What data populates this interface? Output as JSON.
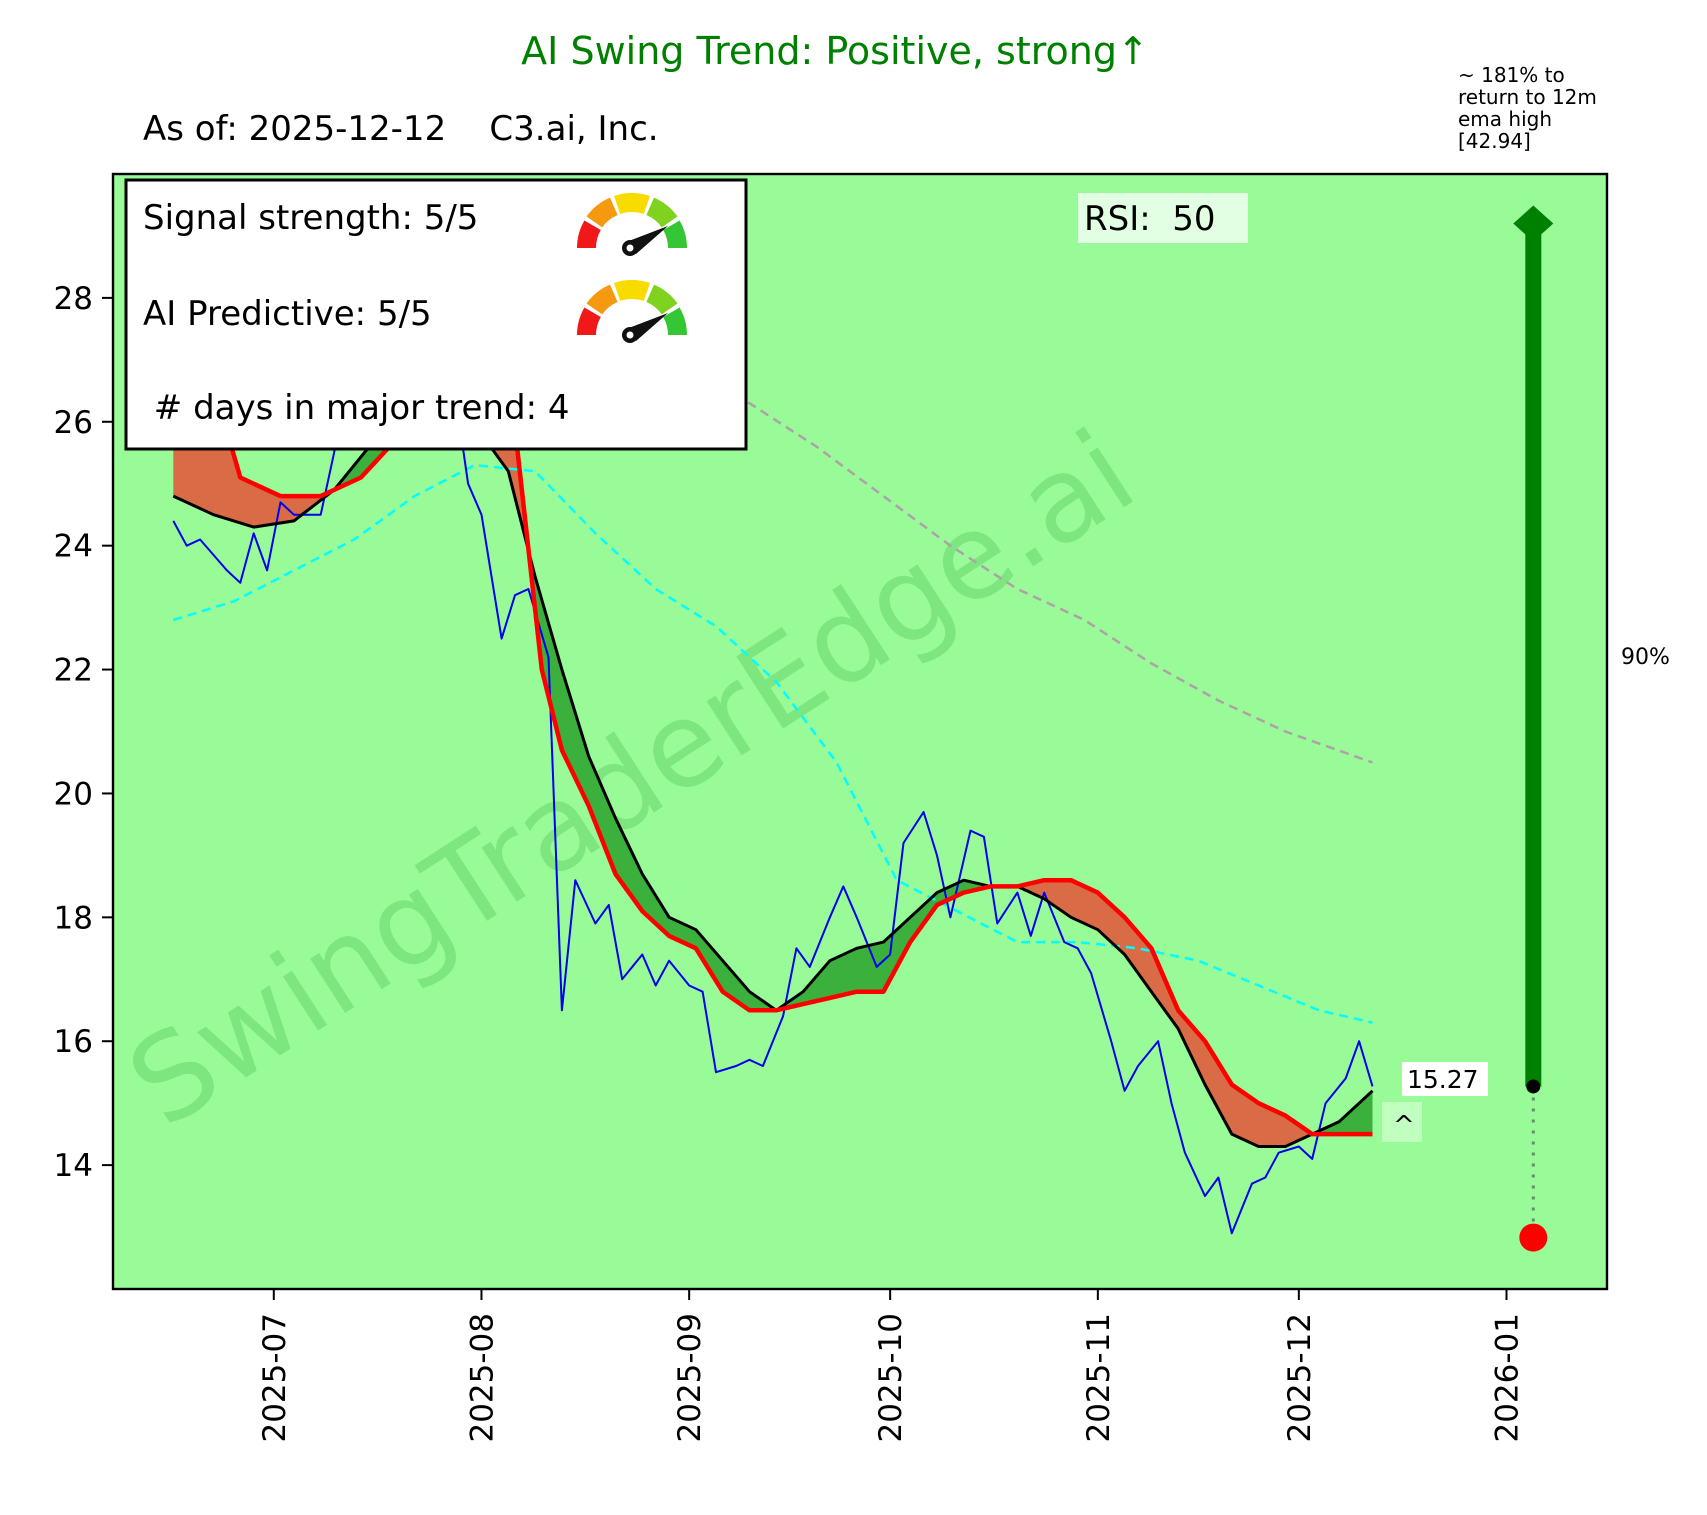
{
  "header": {
    "title": "AI  Swing Trend: Positive, strong↑",
    "title_color": "#008000",
    "subtitle": "As of: 2025-12-12    C3.ai, Inc."
  },
  "info_box": {
    "signal_strength_label": "Signal strength: 5/5",
    "signal_strength_value": 5,
    "ai_predictive_label": "AI Predictive: 5/5",
    "ai_predictive_value": 5,
    "days_in_trend_label": " # days in major trend: 4",
    "gauge_icon": "speedometer-gauge-icon"
  },
  "rsi_label": "RSI:  50",
  "watermark": "SwingTraderEdge.ai",
  "annotations": {
    "target_note": "~ 181% to\nreturn to 12m\nema high\n[42.94]",
    "target_percent": "90%",
    "last_price_label": "15.27",
    "caret_label": "^",
    "target_marker_value": 29.2,
    "current_marker_value": 15.27,
    "low_marker_value": 12.83,
    "target_progress_percent": 90
  },
  "colors": {
    "plot_bg": "#98fb98",
    "price": "#0000ee",
    "fast_ema": "#000000",
    "slow_ema": "#ff0000",
    "bull_fill": "#3cb03c",
    "bear_fill": "#d96b46",
    "ema_mid": "#00ffff",
    "ema_long": "#b0a0a8",
    "target": "#008000",
    "low_dot": "#ff0000"
  },
  "chart_data": {
    "type": "line",
    "title": "AI  Swing Trend: Positive, strong↑",
    "xlabel": "",
    "ylabel": "",
    "x_ticks": [
      "2025-07",
      "2025-08",
      "2025-09",
      "2025-10",
      "2025-11",
      "2025-12",
      "2026-01"
    ],
    "y_ticks": [
      "14",
      "16",
      "18",
      "20",
      "22",
      "24",
      "26",
      "28"
    ],
    "xlim": [
      "2025-06-07",
      "2026-01-16"
    ],
    "ylim": [
      12.0,
      30.0
    ],
    "grid": false,
    "series": [
      {
        "name": "price",
        "x": [
          "2025-06-16",
          "2025-06-18",
          "2025-06-20",
          "2025-06-24",
          "2025-06-26",
          "2025-06-28",
          "2025-06-30",
          "2025-07-02",
          "2025-07-04",
          "2025-07-08",
          "2025-07-10",
          "2025-07-12",
          "2025-07-14",
          "2025-07-20",
          "2025-07-25",
          "2025-07-28",
          "2025-07-30",
          "2025-08-01",
          "2025-08-04",
          "2025-08-06",
          "2025-08-08",
          "2025-08-11",
          "2025-08-13",
          "2025-08-15",
          "2025-08-18",
          "2025-08-20",
          "2025-08-22",
          "2025-08-25",
          "2025-08-27",
          "2025-08-29",
          "2025-09-01",
          "2025-09-03",
          "2025-09-05",
          "2025-09-08",
          "2025-09-10",
          "2025-09-12",
          "2025-09-15",
          "2025-09-17",
          "2025-09-19",
          "2025-09-22",
          "2025-09-24",
          "2025-09-26",
          "2025-09-29",
          "2025-10-01",
          "2025-10-03",
          "2025-10-06",
          "2025-10-08",
          "2025-10-10",
          "2025-10-13",
          "2025-10-15",
          "2025-10-17",
          "2025-10-20",
          "2025-10-22",
          "2025-10-24",
          "2025-10-27",
          "2025-10-29",
          "2025-10-31",
          "2025-11-03",
          "2025-11-05",
          "2025-11-07",
          "2025-11-10",
          "2025-11-12",
          "2025-11-14",
          "2025-11-17",
          "2025-11-19",
          "2025-11-21",
          "2025-11-24",
          "2025-11-26",
          "2025-11-28",
          "2025-12-01",
          "2025-12-03",
          "2025-12-05",
          "2025-12-08",
          "2025-12-10",
          "2025-12-12"
        ],
        "values": [
          24.4,
          24.0,
          24.1,
          23.6,
          23.4,
          24.2,
          23.6,
          24.7,
          24.5,
          24.5,
          25.5,
          27.0,
          27.2,
          27.5,
          27.0,
          26.5,
          25.0,
          24.5,
          22.5,
          23.2,
          23.3,
          22.2,
          16.5,
          18.6,
          17.9,
          18.2,
          17.0,
          17.4,
          16.9,
          17.3,
          16.9,
          16.8,
          15.5,
          15.6,
          15.7,
          15.6,
          16.4,
          17.5,
          17.2,
          18.0,
          18.5,
          18.0,
          17.2,
          17.4,
          19.2,
          19.7,
          19.0,
          18.0,
          19.4,
          19.3,
          17.9,
          18.4,
          17.7,
          18.4,
          17.6,
          17.5,
          17.1,
          16.0,
          15.2,
          15.6,
          16.0,
          15.0,
          14.2,
          13.5,
          13.8,
          12.9,
          13.7,
          13.8,
          14.2,
          14.3,
          14.1,
          15.0,
          15.4,
          16.0,
          15.27
        ]
      },
      {
        "name": "fast_ema",
        "x": [
          "2025-06-16",
          "2025-06-22",
          "2025-06-28",
          "2025-07-04",
          "2025-07-10",
          "2025-07-16",
          "2025-07-22",
          "2025-07-28",
          "2025-08-01",
          "2025-08-05",
          "2025-08-09",
          "2025-08-13",
          "2025-08-17",
          "2025-08-21",
          "2025-08-25",
          "2025-08-29",
          "2025-09-02",
          "2025-09-06",
          "2025-09-10",
          "2025-09-14",
          "2025-09-18",
          "2025-09-22",
          "2025-09-26",
          "2025-09-30",
          "2025-10-04",
          "2025-10-08",
          "2025-10-12",
          "2025-10-16",
          "2025-10-20",
          "2025-10-24",
          "2025-10-28",
          "2025-11-01",
          "2025-11-05",
          "2025-11-09",
          "2025-11-13",
          "2025-11-17",
          "2025-11-21",
          "2025-11-25",
          "2025-11-29",
          "2025-12-03",
          "2025-12-07",
          "2025-12-12"
        ],
        "values": [
          24.8,
          24.5,
          24.3,
          24.4,
          24.9,
          25.7,
          26.3,
          26.3,
          25.8,
          25.2,
          23.5,
          22.0,
          20.6,
          19.6,
          18.7,
          18.0,
          17.8,
          17.3,
          16.8,
          16.5,
          16.8,
          17.3,
          17.5,
          17.6,
          18.0,
          18.4,
          18.6,
          18.5,
          18.5,
          18.3,
          18.0,
          17.8,
          17.4,
          16.8,
          16.2,
          15.3,
          14.5,
          14.3,
          14.3,
          14.5,
          14.7,
          15.2
        ]
      },
      {
        "name": "slow_ema",
        "x": [
          "2025-06-16",
          "2025-06-22",
          "2025-06-26",
          "2025-07-02",
          "2025-07-08",
          "2025-07-14",
          "2025-07-20",
          "2025-07-26",
          "2025-08-01",
          "2025-08-06",
          "2025-08-10",
          "2025-08-13",
          "2025-08-17",
          "2025-08-21",
          "2025-08-25",
          "2025-08-29",
          "2025-09-02",
          "2025-09-06",
          "2025-09-10",
          "2025-09-14",
          "2025-09-18",
          "2025-09-22",
          "2025-09-26",
          "2025-09-30",
          "2025-10-04",
          "2025-10-08",
          "2025-10-12",
          "2025-10-16",
          "2025-10-20",
          "2025-10-24",
          "2025-10-28",
          "2025-11-01",
          "2025-11-05",
          "2025-11-09",
          "2025-11-13",
          "2025-11-17",
          "2025-11-21",
          "2025-11-25",
          "2025-11-29",
          "2025-12-03",
          "2025-12-07",
          "2025-12-12"
        ],
        "values": [
          26.8,
          26.6,
          25.1,
          24.8,
          24.8,
          25.1,
          25.8,
          26.2,
          26.0,
          25.9,
          22.0,
          20.7,
          19.8,
          18.7,
          18.1,
          17.7,
          17.5,
          16.8,
          16.5,
          16.5,
          16.6,
          16.7,
          16.8,
          16.8,
          17.6,
          18.2,
          18.4,
          18.5,
          18.5,
          18.6,
          18.6,
          18.4,
          18.0,
          17.5,
          16.5,
          16.0,
          15.3,
          15.0,
          14.8,
          14.5,
          14.5,
          14.5
        ]
      },
      {
        "name": "ema_mid",
        "x": [
          "2025-06-16",
          "2025-06-25",
          "2025-07-04",
          "2025-07-13",
          "2025-07-22",
          "2025-07-31",
          "2025-08-09",
          "2025-08-18",
          "2025-08-27",
          "2025-09-05",
          "2025-09-14",
          "2025-09-23",
          "2025-10-02",
          "2025-10-11",
          "2025-10-20",
          "2025-10-29",
          "2025-11-07",
          "2025-11-16",
          "2025-11-25",
          "2025-12-04",
          "2025-12-12"
        ],
        "values": [
          22.8,
          23.1,
          23.6,
          24.1,
          24.8,
          25.3,
          25.2,
          24.2,
          23.3,
          22.7,
          21.8,
          20.5,
          18.6,
          18.1,
          17.6,
          17.6,
          17.5,
          17.3,
          16.9,
          16.5,
          16.3
        ]
      },
      {
        "name": "ema_long",
        "x": [
          "2025-08-31",
          "2025-09-10",
          "2025-09-20",
          "2025-09-30",
          "2025-10-10",
          "2025-10-20",
          "2025-10-30",
          "2025-11-09",
          "2025-11-19",
          "2025-11-29",
          "2025-12-12"
        ],
        "values": [
          26.9,
          26.3,
          25.6,
          24.8,
          24.0,
          23.3,
          22.8,
          22.1,
          21.5,
          21.0,
          20.5
        ]
      }
    ],
    "markers": [
      {
        "name": "target",
        "x": "2026-01-05",
        "y": 29.2,
        "shape": "diamond"
      },
      {
        "name": "current",
        "x": "2026-01-05",
        "y": 15.27,
        "shape": "circle"
      },
      {
        "name": "low",
        "x": "2026-01-05",
        "y": 12.83,
        "shape": "circle"
      }
    ]
  }
}
